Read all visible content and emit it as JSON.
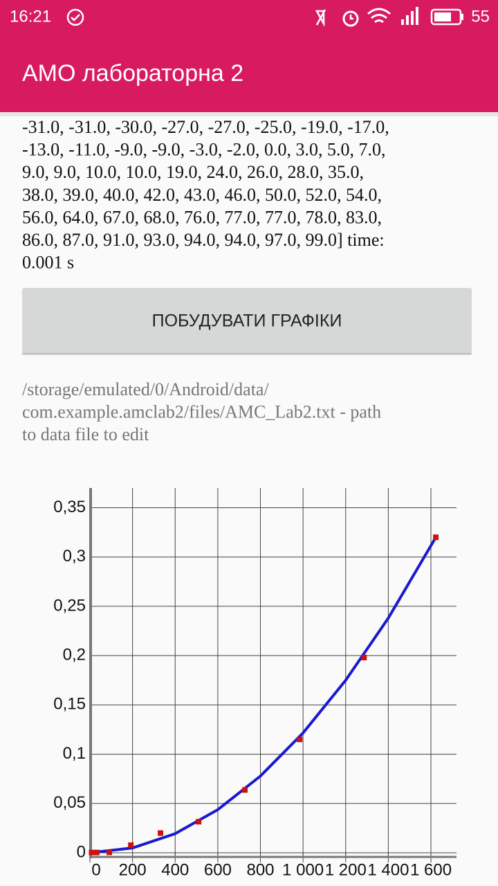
{
  "status_bar": {
    "time": "16:21",
    "battery": "55"
  },
  "app_bar": {
    "title": "АМО лабораторна 2"
  },
  "output": {
    "lines": [
      "-31.0, -31.0, -30.0, -27.0, -27.0, -25.0, -19.0, -17.0,",
      "-13.0, -11.0, -9.0, -9.0, -3.0, -2.0, 0.0, 3.0, 5.0, 7.0,",
      "9.0, 9.0, 10.0, 10.0, 19.0, 24.0, 26.0, 28.0, 35.0,",
      "38.0, 39.0, 40.0, 42.0, 43.0, 46.0, 50.0, 52.0, 54.0,",
      "56.0, 64.0, 67.0, 68.0, 76.0, 77.0, 77.0, 78.0, 83.0,",
      "86.0, 87.0, 91.0, 93.0, 94.0, 94.0, 97.0, 99.0] time:",
      "0.001 s"
    ]
  },
  "button": {
    "label": "ПОБУДУВАТИ ГРАФІКИ"
  },
  "path_note": {
    "lines": [
      "/storage/emulated/0/Android/data/",
      "com.example.amclab2/files/AMC_Lab2.txt - path",
      "to data file to edit"
    ]
  },
  "chart_data": {
    "type": "scatter",
    "xlim": [
      0,
      1720
    ],
    "ylim": [
      0,
      0.37
    ],
    "xticks": [
      0,
      200,
      400,
      600,
      800,
      {
        "value": 1000,
        "label": "1 000"
      },
      {
        "value": 1200,
        "label": "1 200"
      },
      {
        "value": 1400,
        "label": "1 400"
      },
      {
        "value": 1600,
        "label": "1 600"
      }
    ],
    "yticks": [
      0,
      {
        "value": 0.05,
        "label": "0,05"
      },
      {
        "value": 0.1,
        "label": "0,1"
      },
      {
        "value": 0.15,
        "label": "0,15"
      },
      {
        "value": 0.2,
        "label": "0,2"
      },
      {
        "value": 0.25,
        "label": "0,25"
      },
      {
        "value": 0.3,
        "label": "0,3"
      },
      {
        "value": 0.35,
        "label": "0,35"
      }
    ],
    "grid": true,
    "series": [
      {
        "type": "line",
        "color": "#1a1acc",
        "x": [
          0,
          200,
          400,
          600,
          800,
          1000,
          1200,
          1400,
          1623
        ],
        "values": [
          0,
          0.0049,
          0.0194,
          0.0437,
          0.0778,
          0.1215,
          0.175,
          0.238,
          0.32
        ]
      },
      {
        "type": "scatter",
        "color": "#cc1111",
        "x": [
          8,
          32,
          91,
          192,
          331,
          510,
          727,
          984,
          1286,
          1623
        ],
        "values": [
          0.0003,
          0.0003,
          0.0004,
          0.0077,
          0.02,
          0.0315,
          0.0637,
          0.115,
          0.198,
          0.32
        ]
      }
    ]
  }
}
